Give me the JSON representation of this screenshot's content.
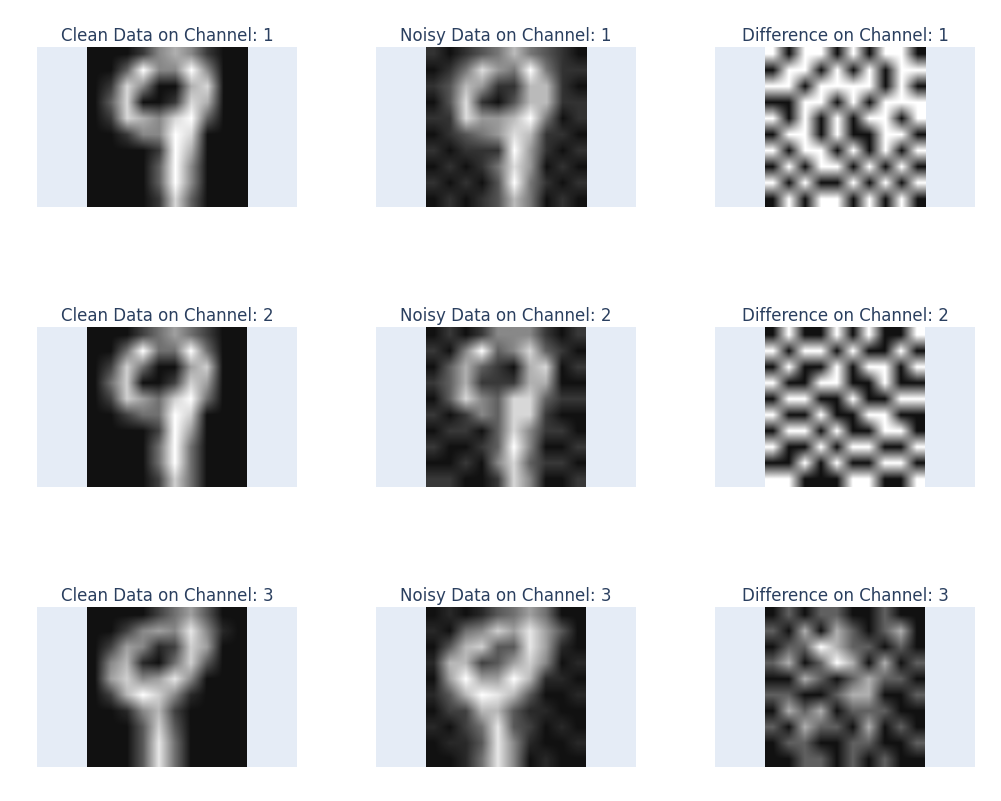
{
  "chart_data": [
    {
      "type": "heatmap",
      "title": "Clean Data on Channel: 1",
      "tick_labels": false,
      "cells": [
        [
          0,
          0,
          0,
          0.1,
          0.3,
          0.4,
          0.3,
          0.1,
          0,
          0
        ],
        [
          0,
          0,
          0.2,
          0.6,
          0.3,
          0.3,
          0.6,
          0.3,
          0,
          0
        ],
        [
          0,
          0.1,
          0.5,
          0.3,
          0,
          0,
          0.4,
          0.5,
          0,
          0
        ],
        [
          0,
          0.2,
          0.5,
          0,
          0,
          0.1,
          0.5,
          0.4,
          0,
          0
        ],
        [
          0,
          0.1,
          0.5,
          0.4,
          0.3,
          0.5,
          0.6,
          0.2,
          0,
          0
        ],
        [
          0,
          0,
          0.1,
          0.3,
          0.3,
          0.6,
          0.5,
          0,
          0,
          0
        ],
        [
          0,
          0,
          0,
          0,
          0.1,
          0.6,
          0.4,
          0,
          0,
          0
        ],
        [
          0,
          0,
          0,
          0,
          0.2,
          0.6,
          0.3,
          0,
          0,
          0
        ],
        [
          0,
          0,
          0,
          0,
          0.2,
          0.6,
          0.3,
          0,
          0,
          0
        ],
        [
          0,
          0,
          0,
          0,
          0.1,
          0.5,
          0.2,
          0,
          0,
          0
        ]
      ]
    },
    {
      "type": "heatmap",
      "title": "Noisy Data on Channel: 1",
      "tick_labels": false,
      "cells": [
        [
          0.1,
          0,
          0.1,
          0.2,
          0.3,
          0.5,
          0.3,
          0.2,
          0.1,
          0
        ],
        [
          0,
          0.1,
          0.3,
          0.6,
          0.4,
          0.3,
          0.7,
          0.3,
          0.1,
          0.1
        ],
        [
          0.1,
          0.2,
          0.5,
          0.4,
          0.1,
          0.1,
          0.5,
          0.5,
          0.1,
          0
        ],
        [
          0,
          0.2,
          0.6,
          0.1,
          0,
          0.2,
          0.5,
          0.5,
          0.1,
          0.1
        ],
        [
          0.1,
          0.1,
          0.6,
          0.4,
          0.4,
          0.5,
          0.7,
          0.3,
          0,
          0.1
        ],
        [
          0,
          0.1,
          0.2,
          0.3,
          0.4,
          0.6,
          0.5,
          0.1,
          0.1,
          0
        ],
        [
          0.1,
          0,
          0.1,
          0.1,
          0.1,
          0.7,
          0.4,
          0.1,
          0,
          0.1
        ],
        [
          0,
          0.1,
          0,
          0.1,
          0.3,
          0.6,
          0.4,
          0,
          0.1,
          0
        ],
        [
          0.1,
          0,
          0.1,
          0,
          0.2,
          0.7,
          0.3,
          0.1,
          0,
          0.1
        ],
        [
          0,
          0.1,
          0,
          0.1,
          0.2,
          0.5,
          0.3,
          0,
          0.1,
          0
        ]
      ]
    },
    {
      "type": "heatmap",
      "title": "Difference on Channel: 1",
      "tick_labels": false,
      "cells": [
        [
          0.1,
          0,
          0.1,
          0.1,
          0,
          0.1,
          0,
          0.1,
          0.1,
          0
        ],
        [
          0,
          0.1,
          0.1,
          0,
          0.1,
          0,
          0.1,
          0,
          0.1,
          0.1
        ],
        [
          0.1,
          0.1,
          0,
          0.1,
          0.1,
          0.1,
          0.1,
          0,
          0.1,
          0
        ],
        [
          0,
          0,
          0.1,
          0.1,
          0,
          0.1,
          0,
          0.1,
          0.1,
          0.1
        ],
        [
          0.1,
          0,
          0.1,
          0,
          0.1,
          0,
          0.1,
          0.1,
          0,
          0.1
        ],
        [
          0,
          0.1,
          0.1,
          0,
          0.1,
          0,
          0,
          0.1,
          0.1,
          0
        ],
        [
          0.1,
          0,
          0.1,
          0.1,
          0,
          0.1,
          0,
          0.1,
          0,
          0.1
        ],
        [
          0,
          0.1,
          0,
          0.1,
          0.1,
          0,
          0.1,
          0,
          0.1,
          0
        ],
        [
          0.1,
          0,
          0.1,
          0,
          0,
          0.1,
          0,
          0.1,
          0,
          0.1
        ],
        [
          0,
          0.1,
          0,
          0.1,
          0.1,
          0,
          0.1,
          0,
          0.1,
          0
        ]
      ]
    },
    {
      "type": "heatmap",
      "title": "Clean Data on Channel: 2",
      "tick_labels": false,
      "cells": [
        [
          0,
          0,
          0,
          0.1,
          0.2,
          0.3,
          0.2,
          0.1,
          0,
          0
        ],
        [
          0,
          0,
          0.2,
          0.5,
          0.2,
          0.2,
          0.5,
          0.2,
          0,
          0
        ],
        [
          0,
          0.1,
          0.4,
          0.2,
          0,
          0,
          0.3,
          0.4,
          0,
          0
        ],
        [
          0,
          0.2,
          0.4,
          0,
          0,
          0.1,
          0.4,
          0.3,
          0,
          0
        ],
        [
          0,
          0.1,
          0.4,
          0.3,
          0.2,
          0.4,
          0.5,
          0.2,
          0,
          0
        ],
        [
          0,
          0,
          0.1,
          0.2,
          0.2,
          0.5,
          0.4,
          0,
          0,
          0
        ],
        [
          0,
          0,
          0,
          0,
          0.1,
          0.5,
          0.3,
          0,
          0,
          0
        ],
        [
          0,
          0,
          0,
          0,
          0.2,
          0.5,
          0.2,
          0,
          0,
          0
        ],
        [
          0,
          0,
          0,
          0,
          0.2,
          0.5,
          0.2,
          0,
          0,
          0
        ],
        [
          0,
          0,
          0,
          0,
          0.1,
          0.4,
          0.2,
          0,
          0,
          0
        ]
      ]
    },
    {
      "type": "heatmap",
      "title": "Noisy Data on Channel: 2",
      "tick_labels": false,
      "cells": [
        [
          0,
          0.1,
          0,
          0.1,
          0.3,
          0.3,
          0.3,
          0.1,
          0,
          0.1
        ],
        [
          0.1,
          0,
          0.3,
          0.6,
          0.2,
          0.3,
          0.5,
          0.2,
          0.1,
          0
        ],
        [
          0,
          0.2,
          0.4,
          0.2,
          0.1,
          0,
          0.4,
          0.5,
          0,
          0.1
        ],
        [
          0.1,
          0.2,
          0.4,
          0.1,
          0.1,
          0.1,
          0.4,
          0.4,
          0,
          0
        ],
        [
          0,
          0.2,
          0.5,
          0.3,
          0.2,
          0.5,
          0.5,
          0.2,
          0.1,
          0.1
        ],
        [
          0.1,
          0,
          0.1,
          0.3,
          0.2,
          0.5,
          0.5,
          0.1,
          0,
          0
        ],
        [
          0,
          0.1,
          0.1,
          0,
          0.2,
          0.5,
          0.3,
          0.1,
          0.1,
          0
        ],
        [
          0.1,
          0,
          0,
          0.1,
          0.2,
          0.6,
          0.3,
          0,
          0,
          0.1
        ],
        [
          0,
          0,
          0.1,
          0,
          0.3,
          0.5,
          0.2,
          0.1,
          0.1,
          0
        ],
        [
          0.1,
          0.1,
          0,
          0,
          0.1,
          0.5,
          0.3,
          0,
          0,
          0.1
        ]
      ]
    },
    {
      "type": "heatmap",
      "title": "Difference on Channel: 2",
      "tick_labels": false,
      "cells": [
        [
          0,
          0.1,
          0,
          0,
          0.1,
          0,
          0.1,
          0,
          0,
          0.1
        ],
        [
          0.1,
          0,
          0.1,
          0.1,
          0,
          0.1,
          0,
          0,
          0.1,
          0
        ],
        [
          0,
          0.1,
          0,
          0,
          0.1,
          0,
          0.1,
          0.1,
          0,
          0.1
        ],
        [
          0.1,
          0,
          0,
          0.1,
          0.1,
          0,
          0,
          0.1,
          0,
          0
        ],
        [
          0,
          0.1,
          0.1,
          0,
          0,
          0.1,
          0,
          0,
          0.1,
          0.1
        ],
        [
          0.1,
          0,
          0,
          0.1,
          0,
          0,
          0.1,
          0.1,
          0,
          0
        ],
        [
          0,
          0.1,
          0.1,
          0,
          0.1,
          0,
          0,
          0.1,
          0.1,
          0
        ],
        [
          0.1,
          0,
          0,
          0.1,
          0,
          0.1,
          0.1,
          0,
          0,
          0.1
        ],
        [
          0,
          0,
          0.1,
          0,
          0.1,
          0,
          0,
          0.1,
          0.1,
          0
        ],
        [
          0.1,
          0.1,
          0,
          0,
          0,
          0.1,
          0.1,
          0,
          0,
          0.1
        ]
      ]
    },
    {
      "type": "heatmap",
      "title": "Clean Data on Channel: 3",
      "tick_labels": false,
      "cells": [
        [
          0,
          0,
          0,
          0,
          0.2,
          0.4,
          0.6,
          0.3,
          0,
          0
        ],
        [
          0,
          0,
          0.2,
          0.5,
          0.6,
          0.5,
          0.9,
          0.5,
          0.1,
          0
        ],
        [
          0,
          0.2,
          0.6,
          0.5,
          0.1,
          0.2,
          0.8,
          0.6,
          0,
          0
        ],
        [
          0,
          0.5,
          0.7,
          0.1,
          0,
          0.4,
          0.8,
          0.3,
          0,
          0
        ],
        [
          0,
          0.6,
          0.8,
          0.5,
          0.6,
          0.9,
          0.5,
          0,
          0,
          0
        ],
        [
          0,
          0.2,
          0.7,
          1,
          0.8,
          0.5,
          0.1,
          0,
          0,
          0
        ],
        [
          0,
          0,
          0.1,
          0.5,
          0.7,
          0.2,
          0,
          0,
          0,
          0
        ],
        [
          0,
          0,
          0,
          0.3,
          0.8,
          0.3,
          0,
          0,
          0,
          0
        ],
        [
          0,
          0,
          0,
          0.3,
          0.9,
          0.4,
          0,
          0,
          0,
          0
        ],
        [
          0,
          0,
          0,
          0.3,
          0.9,
          0.4,
          0,
          0,
          0,
          0
        ]
      ]
    },
    {
      "type": "heatmap",
      "title": "Noisy Data on Channel: 3",
      "tick_labels": false,
      "cells": [
        [
          0,
          0.1,
          0,
          0.1,
          0.3,
          0.4,
          0.6,
          0.4,
          0,
          0
        ],
        [
          0.1,
          0,
          0.4,
          0.5,
          0.8,
          0.6,
          0.9,
          0.6,
          0.3,
          0
        ],
        [
          0,
          0.3,
          0.7,
          0.8,
          0.3,
          0.3,
          0.9,
          0.6,
          0.1,
          0
        ],
        [
          0.1,
          0.7,
          0.7,
          0.2,
          0.3,
          0.6,
          0.8,
          0.5,
          0,
          0.1
        ],
        [
          0,
          0.6,
          1,
          0.6,
          0.6,
          1,
          0.7,
          0.1,
          0.1,
          0
        ],
        [
          0.1,
          0.3,
          0.7,
          1,
          0.9,
          0.7,
          0.3,
          0,
          0,
          0.1
        ],
        [
          0,
          0.2,
          0.2,
          0.7,
          0.7,
          0.3,
          0.1,
          0.1,
          0,
          0
        ],
        [
          0.1,
          0,
          0.2,
          0.4,
          0.9,
          0.3,
          0.2,
          0,
          0.1,
          0
        ],
        [
          0,
          0.1,
          0.1,
          0.3,
          0.9,
          0.5,
          0.1,
          0,
          0,
          0.1
        ],
        [
          0,
          0,
          0.1,
          0.4,
          0.9,
          0.5,
          0,
          0.1,
          0,
          0
        ]
      ]
    },
    {
      "type": "heatmap",
      "title": "Difference on Channel: 3",
      "tick_labels": false,
      "cells": [
        [
          0,
          0.1,
          0,
          0.1,
          0.1,
          0,
          0,
          0.1,
          0,
          0
        ],
        [
          0.1,
          0,
          0.2,
          0,
          0.2,
          0.1,
          0,
          0.1,
          0.2,
          0
        ],
        [
          0,
          0.1,
          0.1,
          0.3,
          0.2,
          0.1,
          0.1,
          0,
          0.1,
          0
        ],
        [
          0.1,
          0.2,
          0,
          0.1,
          0.3,
          0.2,
          0,
          0.2,
          0,
          0.1
        ],
        [
          0,
          0,
          0.2,
          0.1,
          0,
          0.1,
          0.2,
          0.1,
          0.1,
          0
        ],
        [
          0.1,
          0.1,
          0,
          0,
          0.1,
          0.2,
          0.2,
          0,
          0,
          0.1
        ],
        [
          0,
          0.2,
          0.1,
          0.2,
          0,
          0.1,
          0.1,
          0.1,
          0,
          0
        ],
        [
          0.1,
          0,
          0.2,
          0.1,
          0.1,
          0,
          0.2,
          0,
          0.1,
          0
        ],
        [
          0,
          0.1,
          0.1,
          0,
          0,
          0.1,
          0.1,
          0,
          0,
          0.1
        ],
        [
          0,
          0,
          0.1,
          0.1,
          0,
          0.1,
          0,
          0.1,
          0,
          0
        ]
      ]
    }
  ]
}
